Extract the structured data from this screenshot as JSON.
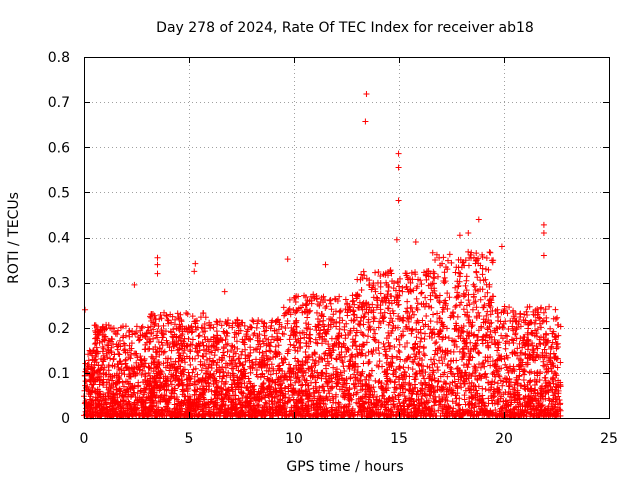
{
  "chart_data": {
    "type": "scatter",
    "title": "Day 278 of 2024, Rate Of TEC Index for receiver ab18",
    "xlabel": "GPS time / hours",
    "ylabel": "ROTI / TECUs",
    "xlim": [
      0,
      25
    ],
    "ylim": [
      0,
      0.8
    ],
    "xticks": [
      0,
      5,
      10,
      15,
      20,
      25
    ],
    "yticks": [
      0,
      0.1,
      0.2,
      0.3,
      0.4,
      0.5,
      0.6,
      0.7,
      0.8
    ],
    "grid": true,
    "marker": "plus",
    "color": "#ff0000",
    "x_range": [
      0,
      22.7
    ],
    "highlights": [
      {
        "x": 13.45,
        "y": 0.718
      },
      {
        "x": 13.4,
        "y": 0.657
      },
      {
        "x": 14.98,
        "y": 0.586
      },
      {
        "x": 14.98,
        "y": 0.555
      },
      {
        "x": 14.98,
        "y": 0.482
      },
      {
        "x": 18.8,
        "y": 0.44
      },
      {
        "x": 21.9,
        "y": 0.428
      },
      {
        "x": 21.9,
        "y": 0.41
      },
      {
        "x": 17.9,
        "y": 0.405
      },
      {
        "x": 18.3,
        "y": 0.41
      },
      {
        "x": 3.5,
        "y": 0.355
      },
      {
        "x": 3.5,
        "y": 0.34
      },
      {
        "x": 3.5,
        "y": 0.32
      },
      {
        "x": 5.3,
        "y": 0.342
      },
      {
        "x": 5.25,
        "y": 0.325
      },
      {
        "x": 9.7,
        "y": 0.352
      },
      {
        "x": 14.9,
        "y": 0.395
      },
      {
        "x": 15.8,
        "y": 0.39
      },
      {
        "x": 19.9,
        "y": 0.38
      },
      {
        "x": 21.9,
        "y": 0.36
      },
      {
        "x": 0.05,
        "y": 0.24
      },
      {
        "x": 2.4,
        "y": 0.295
      },
      {
        "x": 6.7,
        "y": 0.28
      },
      {
        "x": 11.5,
        "y": 0.34
      }
    ]
  }
}
